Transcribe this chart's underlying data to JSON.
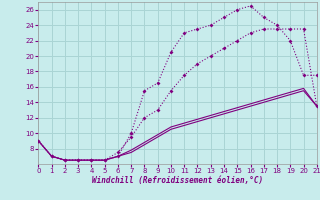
{
  "xlabel": "Windchill (Refroidissement éolien,°C)",
  "bg_color": "#c8ecec",
  "grid_color": "#aad4d4",
  "line_color": "#800080",
  "xlim": [
    0,
    21
  ],
  "ylim": [
    6,
    27
  ],
  "xticks": [
    0,
    1,
    2,
    3,
    4,
    5,
    6,
    7,
    8,
    9,
    10,
    11,
    12,
    13,
    14,
    15,
    16,
    17,
    18,
    19,
    20,
    21
  ],
  "yticks": [
    8,
    10,
    12,
    14,
    16,
    18,
    20,
    22,
    24,
    26
  ],
  "series1_x": [
    0,
    1,
    2,
    3,
    4,
    5,
    6,
    7,
    8,
    9,
    10,
    11,
    12,
    13,
    14,
    15,
    16,
    17,
    18,
    19,
    20,
    21
  ],
  "series1_y": [
    9.0,
    7.0,
    6.5,
    6.5,
    6.5,
    6.5,
    7.0,
    10.0,
    15.5,
    16.5,
    20.5,
    23.0,
    23.5,
    24.0,
    25.0,
    26.0,
    26.5,
    25.0,
    24.0,
    22.0,
    17.5,
    17.5
  ],
  "series2_x": [
    0,
    1,
    2,
    3,
    4,
    5,
    6,
    7,
    8,
    9,
    10,
    11,
    12,
    13,
    14,
    15,
    16,
    17,
    18,
    19,
    20,
    21
  ],
  "series2_y": [
    9.0,
    7.0,
    6.5,
    6.5,
    6.5,
    6.5,
    7.5,
    9.5,
    12.0,
    13.0,
    15.5,
    17.5,
    19.0,
    20.0,
    21.0,
    22.0,
    23.0,
    23.5,
    23.5,
    23.5,
    23.5,
    13.5
  ],
  "series3_x": [
    0,
    1,
    2,
    3,
    4,
    5,
    6,
    7,
    8,
    9,
    10,
    11,
    12,
    13,
    14,
    15,
    16,
    17,
    18,
    19,
    20,
    21
  ],
  "series3_y": [
    9.0,
    7.0,
    6.5,
    6.5,
    6.5,
    6.5,
    7.0,
    7.5,
    8.5,
    9.5,
    10.5,
    11.0,
    11.5,
    12.0,
    12.5,
    13.0,
    13.5,
    14.0,
    14.5,
    15.0,
    15.5,
    13.5
  ],
  "series4_x": [
    0,
    1,
    2,
    3,
    4,
    5,
    6,
    7,
    8,
    9,
    10,
    11,
    12,
    13,
    14,
    15,
    16,
    17,
    18,
    19,
    20,
    21
  ],
  "series4_y": [
    9.0,
    7.0,
    6.5,
    6.5,
    6.5,
    6.5,
    7.0,
    7.8,
    8.8,
    9.8,
    10.8,
    11.3,
    11.8,
    12.3,
    12.8,
    13.3,
    13.8,
    14.3,
    14.8,
    15.3,
    15.8,
    13.5
  ]
}
